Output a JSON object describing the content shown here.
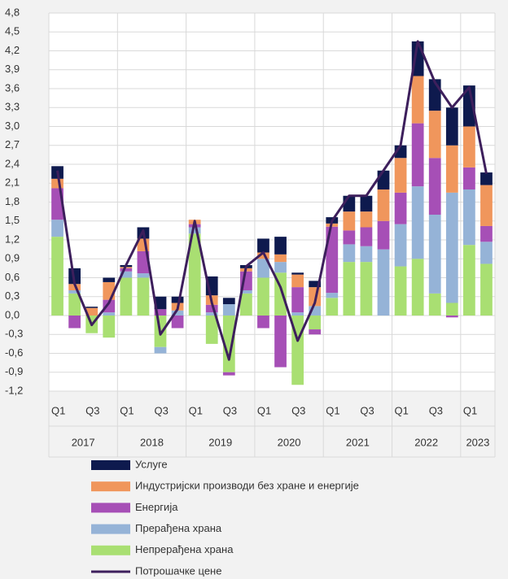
{
  "chart_data": {
    "type": "bar",
    "categories": [
      "Q1",
      null,
      "Q3",
      null,
      "Q1",
      null,
      "Q3",
      null,
      "Q1",
      null,
      "Q3",
      null,
      "Q1",
      null,
      "Q3",
      null,
      "Q1",
      null,
      "Q3",
      null,
      "Q1",
      null,
      "Q3",
      null,
      "Q1",
      null
    ],
    "years": [
      "2017",
      "2018",
      "2019",
      "2020",
      "2021",
      "2022",
      "2023"
    ],
    "series": [
      {
        "name": "Непрерађена храна",
        "color": "#a9df72",
        "values": [
          1.25,
          0.35,
          -0.28,
          -0.35,
          0.6,
          0.6,
          -0.5,
          0.0,
          1.3,
          -0.45,
          -0.9,
          0.35,
          0.6,
          0.68,
          -1.1,
          -0.22,
          0.28,
          0.85,
          0.85,
          0.0,
          0.78,
          0.9,
          0.35,
          0.2,
          1.12,
          0.82
        ]
      },
      {
        "name": "Прерађена храна",
        "color": "#95b3d7",
        "values": [
          0.27,
          0.05,
          0.0,
          0.05,
          0.1,
          0.07,
          -0.1,
          0.08,
          0.1,
          0.05,
          0.18,
          0.05,
          0.3,
          0.17,
          0.05,
          0.15,
          0.08,
          0.28,
          0.25,
          1.05,
          0.67,
          1.15,
          1.25,
          1.75,
          0.88,
          0.35
        ]
      },
      {
        "name": "Енергија",
        "color": "#a64fb6",
        "values": [
          0.5,
          -0.2,
          0.0,
          0.2,
          0.05,
          0.35,
          0.1,
          -0.2,
          0.05,
          0.12,
          -0.05,
          0.3,
          -0.2,
          -0.82,
          0.4,
          -0.08,
          1.05,
          0.22,
          0.3,
          0.45,
          0.5,
          1.0,
          0.9,
          -0.03,
          0.35,
          0.25
        ]
      },
      {
        "name": "Индустријски производи без хране и енергије",
        "color": "#f0965c",
        "values": [
          0.15,
          0.1,
          0.12,
          0.28,
          0.02,
          0.2,
          0.0,
          0.12,
          0.07,
          0.15,
          0.0,
          0.05,
          0.1,
          0.12,
          0.2,
          0.3,
          0.05,
          0.3,
          0.25,
          0.5,
          0.55,
          0.75,
          0.75,
          0.75,
          0.65,
          0.65
        ]
      },
      {
        "name": "Услуге",
        "color": "#0e1a4e",
        "values": [
          0.2,
          0.25,
          0.02,
          0.07,
          0.03,
          0.18,
          0.2,
          0.1,
          0.0,
          0.3,
          0.1,
          0.05,
          0.22,
          0.28,
          0.03,
          0.1,
          0.1,
          0.25,
          0.25,
          0.3,
          0.2,
          0.55,
          0.5,
          0.6,
          0.65,
          0.2
        ]
      }
    ],
    "line": {
      "name": "Потрошачке цене",
      "color": "#3d1f5c",
      "values": [
        2.3,
        0.5,
        -0.15,
        0.2,
        0.8,
        1.35,
        -0.3,
        0.1,
        1.5,
        0.2,
        -0.7,
        0.78,
        1.0,
        0.45,
        -0.4,
        0.2,
        1.5,
        1.9,
        1.9,
        2.3,
        2.7,
        4.35,
        3.7,
        3.3,
        3.62,
        2.25
      ]
    },
    "ylim": [
      -1.2,
      4.8
    ],
    "yticks": [
      {
        "value": -1.2,
        "label": "-1,2"
      },
      {
        "value": -0.9,
        "label": "-0,9"
      },
      {
        "value": -0.6,
        "label": "-0,6"
      },
      {
        "value": -0.3,
        "label": "-0,3"
      },
      {
        "value": 0,
        "label": "0,0"
      },
      {
        "value": 0.3,
        "label": "0,3"
      },
      {
        "value": 0.6,
        "label": "0,6"
      },
      {
        "value": 0.9,
        "label": "0,9"
      },
      {
        "value": 1.2,
        "label": "1,2"
      },
      {
        "value": 1.5,
        "label": "1,5"
      },
      {
        "value": 1.8,
        "label": "1,8"
      },
      {
        "value": 2.1,
        "label": "2,1"
      },
      {
        "value": 2.4,
        "label": "2,4"
      },
      {
        "value": 2.7,
        "label": "2,7"
      },
      {
        "value": 3.0,
        "label": "3,0"
      },
      {
        "value": 3.3,
        "label": "3,3"
      },
      {
        "value": 3.6,
        "label": "3,6"
      },
      {
        "value": 3.9,
        "label": "3,9"
      },
      {
        "value": 4.2,
        "label": "4,2"
      },
      {
        "value": 4.5,
        "label": "4,5"
      },
      {
        "value": 4.8,
        "label": "4,8"
      }
    ],
    "grid": true
  }
}
